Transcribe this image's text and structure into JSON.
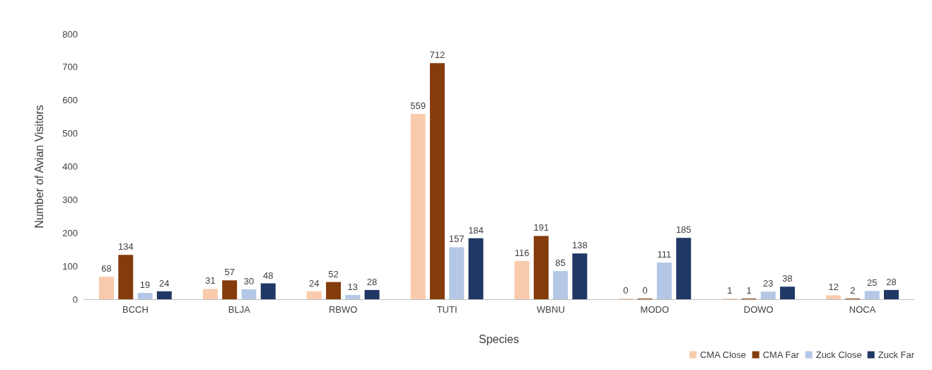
{
  "chart_data": {
    "type": "bar",
    "xlabel": "Species",
    "ylabel": "Number of Avian Visitors",
    "categories": [
      "BCCH",
      "BLJA",
      "RBWO",
      "TUTI",
      "WBNU",
      "MODO",
      "DOWO",
      "NOCA"
    ],
    "series": [
      {
        "name": "CMA Close",
        "color": "#f8cbad",
        "values": [
          68,
          31,
          24,
          559,
          116,
          0,
          1,
          12
        ]
      },
      {
        "name": "CMA Far",
        "color": "#843c0c",
        "values": [
          134,
          57,
          52,
          712,
          191,
          0,
          1,
          2
        ]
      },
      {
        "name": "Zuck Close",
        "color": "#b4c7e7",
        "values": [
          19,
          30,
          13,
          157,
          85,
          111,
          23,
          25
        ]
      },
      {
        "name": "Zuck Far",
        "color": "#203864",
        "values": [
          24,
          48,
          28,
          184,
          138,
          185,
          38,
          28
        ]
      }
    ],
    "ylim": [
      0,
      800
    ],
    "yticks": [
      0,
      100,
      200,
      300,
      400,
      500,
      600,
      700,
      800
    ],
    "grid": false,
    "legend": "bottom right",
    "data_labels": true
  }
}
